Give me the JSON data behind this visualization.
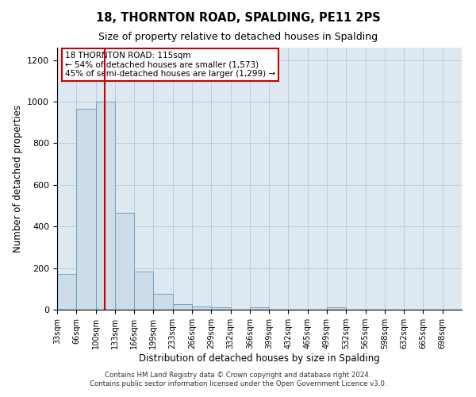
{
  "title": "18, THORNTON ROAD, SPALDING, PE11 2PS",
  "subtitle": "Size of property relative to detached houses in Spalding",
  "xlabel": "Distribution of detached houses by size in Spalding",
  "ylabel": "Number of detached properties",
  "bar_color": "#ccdce8",
  "bar_edge_color": "#6699bb",
  "background_color": "#ffffff",
  "plot_bg_color": "#dde8f0",
  "grid_color": "#bbccdd",
  "vline_color": "#cc0000",
  "vline_x": 115,
  "annotation_text_line1": "18 THORNTON ROAD: 115sqm",
  "annotation_text_line2": "← 54% of detached houses are smaller (1,573)",
  "annotation_text_line3": "45% of semi-detached houses are larger (1,299) →",
  "annotation_box_color": "#cc0000",
  "bin_edges": [
    33,
    66,
    99,
    132,
    165,
    198,
    231,
    264,
    297,
    330,
    363,
    396,
    429,
    462,
    495,
    528,
    561,
    594,
    627,
    660,
    693,
    726
  ],
  "bin_values": [
    170,
    965,
    1000,
    465,
    185,
    75,
    25,
    15,
    10,
    0,
    10,
    0,
    0,
    0,
    10,
    0,
    0,
    0,
    0,
    0,
    0
  ],
  "tick_labels": [
    "33sqm",
    "66sqm",
    "100sqm",
    "133sqm",
    "166sqm",
    "199sqm",
    "233sqm",
    "266sqm",
    "299sqm",
    "332sqm",
    "366sqm",
    "399sqm",
    "432sqm",
    "465sqm",
    "499sqm",
    "532sqm",
    "565sqm",
    "598sqm",
    "632sqm",
    "665sqm",
    "698sqm"
  ],
  "ylim": [
    0,
    1260
  ],
  "yticks": [
    0,
    200,
    400,
    600,
    800,
    1000,
    1200
  ],
  "footer_line1": "Contains HM Land Registry data © Crown copyright and database right 2024.",
  "footer_line2": "Contains public sector information licensed under the Open Government Licence v3.0.",
  "figsize": [
    6.0,
    5.0
  ],
  "dpi": 100
}
